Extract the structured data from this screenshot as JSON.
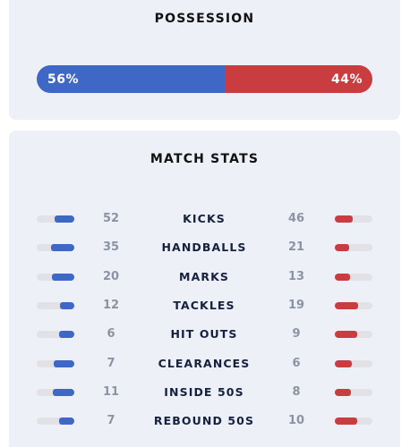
{
  "possession": {
    "title": "POSSESSION",
    "home_pct": 56,
    "away_pct": 44,
    "home_label": "56%",
    "away_label": "44%"
  },
  "colors": {
    "home": "#3f67c6",
    "away": "#c93d40",
    "card_bg": "#edf0f7"
  },
  "match_stats": {
    "title": "MATCH STATS",
    "rows": [
      {
        "label": "KICKS",
        "home": "52",
        "away": "46"
      },
      {
        "label": "HANDBALLS",
        "home": "35",
        "away": "21"
      },
      {
        "label": "MARKS",
        "home": "20",
        "away": "13"
      },
      {
        "label": "TACKLES",
        "home": "12",
        "away": "19"
      },
      {
        "label": "HIT OUTS",
        "home": "6",
        "away": "9"
      },
      {
        "label": "CLEARANCES",
        "home": "7",
        "away": "6"
      },
      {
        "label": "INSIDE 50S",
        "home": "11",
        "away": "8"
      },
      {
        "label": "REBOUND 50S",
        "home": "7",
        "away": "10"
      }
    ]
  }
}
